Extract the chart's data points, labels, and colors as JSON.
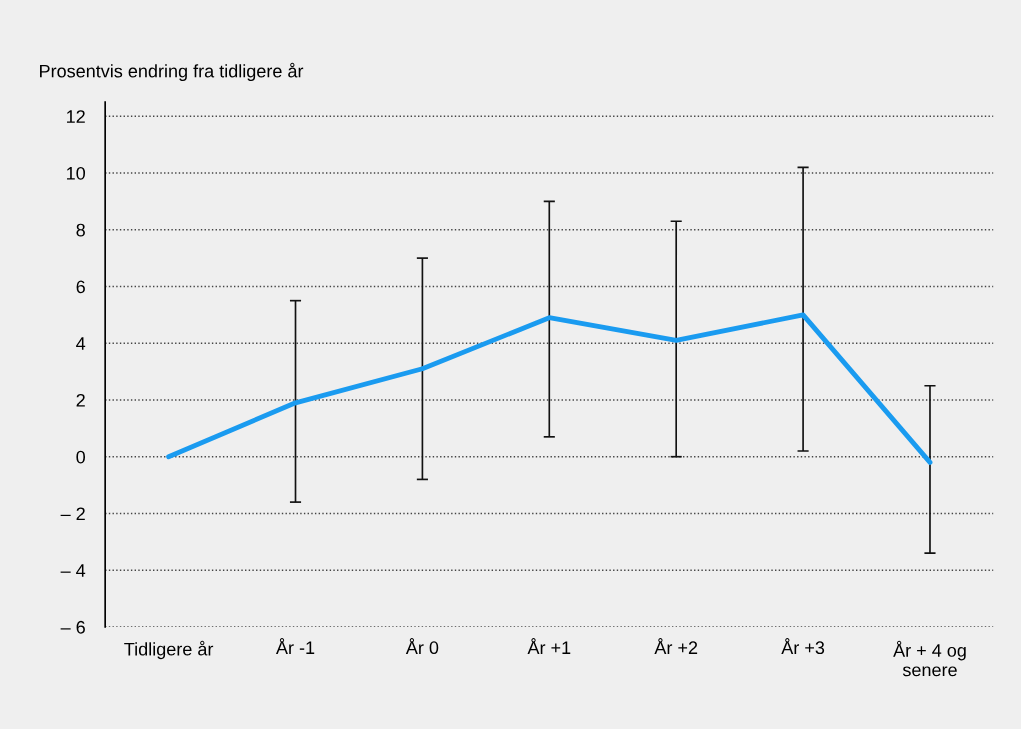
{
  "chart_data": {
    "type": "line",
    "ylabel": "Prosentvis endring fra tidligere år",
    "categories": [
      "Tidligere år",
      "År -1",
      "År 0",
      "År +1",
      "År +2",
      "År +3",
      "År + 4 og\nsenere"
    ],
    "series": [
      {
        "color": "#1a9bf0",
        "values": [
          0,
          1.9,
          3.1,
          4.9,
          4.1,
          5.0,
          -0.2
        ],
        "errors": [
          null,
          [
            -1.6,
            5.5
          ],
          [
            -0.8,
            7.0
          ],
          [
            0.7,
            9.0
          ],
          [
            0.0,
            8.3
          ],
          [
            0.2,
            10.2
          ],
          [
            -3.4,
            2.5
          ]
        ]
      }
    ],
    "ylim": [
      -6,
      12.5
    ],
    "yticks": [
      {
        "value": -6,
        "label": "– 6"
      },
      {
        "value": -4,
        "label": "– 4"
      },
      {
        "value": -2,
        "label": "– 2"
      },
      0,
      2,
      4,
      6,
      8,
      10,
      12
    ],
    "grid": "y",
    "marker": "none",
    "line_style": "solid"
  }
}
